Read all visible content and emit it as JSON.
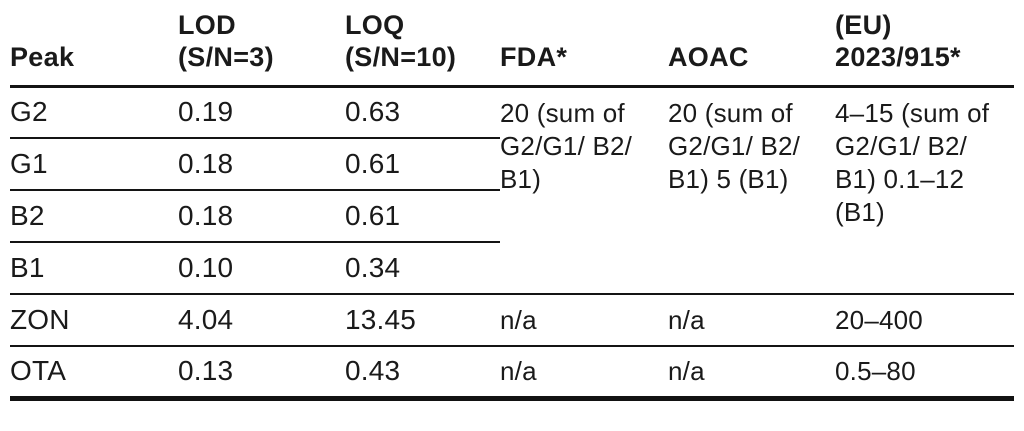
{
  "page": {
    "background_color": "#ffffff",
    "text_color": "#1a1a1a",
    "rule_color": "#141414"
  },
  "table": {
    "columns": [
      {
        "label": "Peak"
      },
      {
        "label": "LOD\n(S/N=3)"
      },
      {
        "label": "LOQ\n(S/N=10)"
      },
      {
        "label": "FDA*"
      },
      {
        "label": "AOAC"
      },
      {
        "label": "(EU)\n2023/915*"
      }
    ],
    "rows": [
      {
        "peak": "G2",
        "lod": "0.19",
        "loq": "0.63",
        "fda": "20 (sum of G2/G1/ B2/ B1)",
        "aoac": "20 (sum of G2/G1/ B2/ B1) 5 (B1)",
        "eu": "4–15 (sum of G2/G1/ B2/ B1) 0.1–12 (B1)"
      },
      {
        "peak": "G1",
        "lod": "0.18",
        "loq": "0.61"
      },
      {
        "peak": "B2",
        "lod": "0.18",
        "loq": "0.61"
      },
      {
        "peak": "B1",
        "lod": "0.10",
        "loq": "0.34"
      },
      {
        "peak": "ZON",
        "lod": "4.04",
        "loq": "13.45",
        "fda": "n/a",
        "aoac": "n/a",
        "eu": "20–400"
      },
      {
        "peak": "OTA",
        "lod": "0.13",
        "loq": "0.43",
        "fda": "n/a",
        "aoac": "n/a",
        "eu": "0.5–80"
      }
    ]
  }
}
